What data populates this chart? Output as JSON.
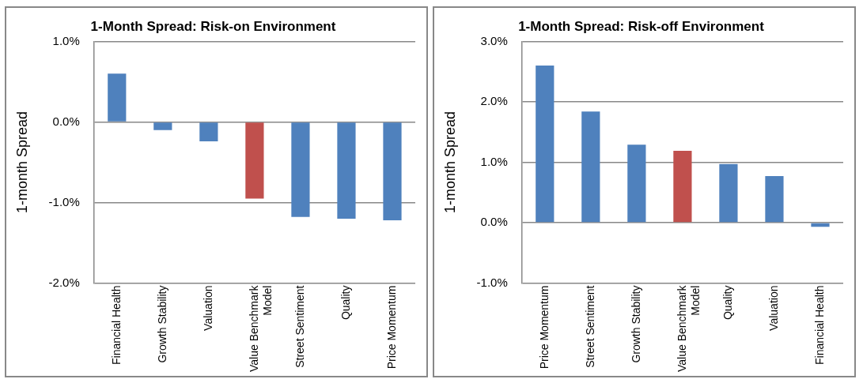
{
  "chart_data": [
    {
      "type": "bar",
      "title": "1-Month Spread: Risk-on Environment",
      "ylabel": "1-month Spread",
      "categories": [
        "Financial Health",
        "Growth Stability",
        "Valuation",
        "Value Benchmark Model",
        "Street Sentiment",
        "Quality",
        "Price Momentum"
      ],
      "values": [
        0.6,
        -0.1,
        -0.24,
        -0.95,
        -1.18,
        -1.2,
        -1.22
      ],
      "colors": [
        "#4f81bd",
        "#4f81bd",
        "#4f81bd",
        "#c0504d",
        "#4f81bd",
        "#4f81bd",
        "#4f81bd"
      ],
      "ylim": [
        -2,
        1
      ],
      "yticks": [
        {
          "value": -2,
          "label": "-2.0%"
        },
        {
          "value": -1,
          "label": "-1.0%"
        },
        {
          "value": 0,
          "label": "0.0%"
        },
        {
          "value": 1,
          "label": "1.0%"
        }
      ],
      "grid": "y",
      "legend": false
    },
    {
      "type": "bar",
      "title": "1-Month Spread: Risk-off Environment",
      "ylabel": "1-month Spread",
      "categories": [
        "Price Momentum",
        "Street Sentiment",
        "Growth Stability",
        "Value Benchmark Model",
        "Quality",
        "Valuation",
        "Financial Health"
      ],
      "values": [
        2.6,
        1.84,
        1.29,
        1.19,
        0.97,
        0.77,
        -0.07
      ],
      "colors": [
        "#4f81bd",
        "#4f81bd",
        "#4f81bd",
        "#c0504d",
        "#4f81bd",
        "#4f81bd",
        "#4f81bd"
      ],
      "ylim": [
        -1,
        3
      ],
      "yticks": [
        {
          "value": -1,
          "label": "-1.0%"
        },
        {
          "value": 0,
          "label": "0.0%"
        },
        {
          "value": 1,
          "label": "1.0%"
        },
        {
          "value": 2,
          "label": "2.0%"
        },
        {
          "value": 3,
          "label": "3.0%"
        }
      ],
      "grid": "y",
      "legend": false
    }
  ]
}
